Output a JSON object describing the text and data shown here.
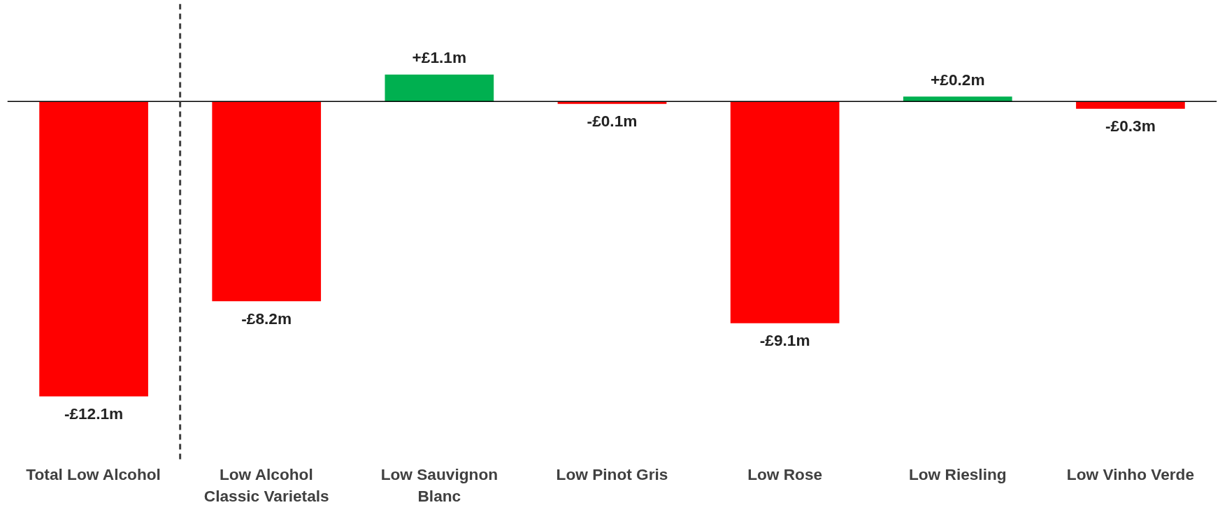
{
  "chart_data": {
    "type": "bar",
    "categories": [
      "Total Low Alcohol",
      "Low Alcohol Classic Varietals",
      "Low Sauvignon Blanc",
      "Low Pinot Gris",
      "Low Rose",
      "Low Riesling",
      "Low Vinho Verde"
    ],
    "values": [
      -12.1,
      -8.2,
      1.1,
      -0.1,
      -9.1,
      0.2,
      -0.3
    ],
    "colors": [
      "#ff0000",
      "#ff0000",
      "#00b050",
      "#ff0000",
      "#ff0000",
      "#00b050",
      "#ff0000"
    ],
    "value_labels": [
      "-£12.1m",
      "-£8.2m",
      "+£1.1m",
      "-£0.1m",
      "-£9.1m",
      "+£0.2m",
      "-£0.3m"
    ],
    "grid": false
  }
}
